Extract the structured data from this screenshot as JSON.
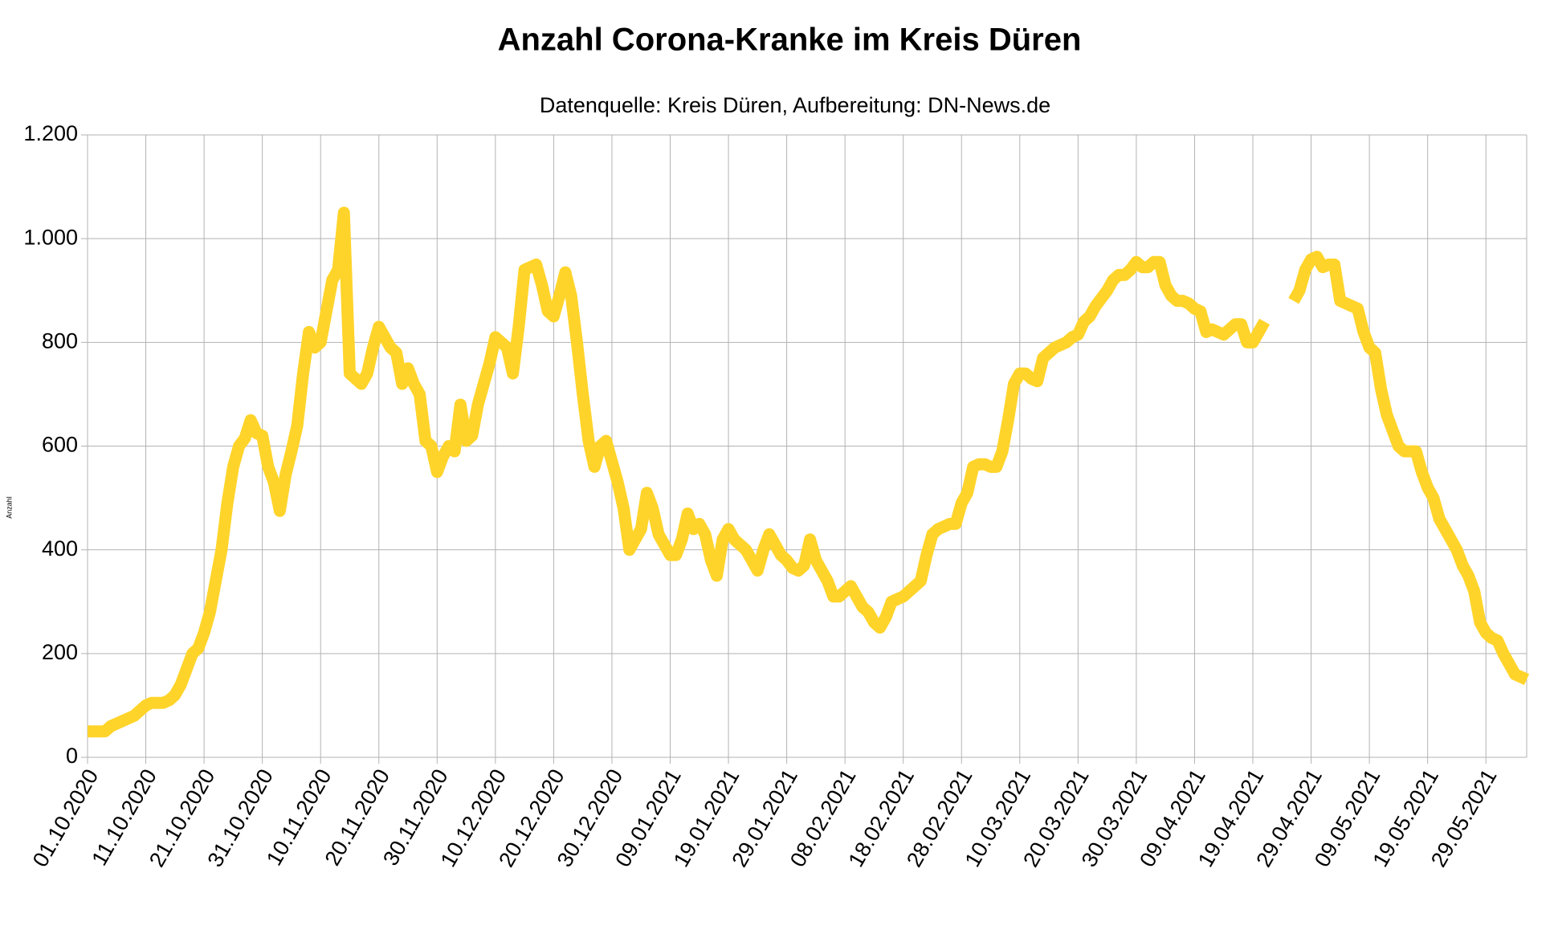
{
  "chart_data": {
    "type": "line",
    "title": "Anzahl Corona-Kranke im Kreis Düren",
    "subtitle": "Datenquelle: Kreis Düren, Aufbereitung: DN-News.de",
    "y_label": "Anzahl",
    "grid": true,
    "ylim": [
      0,
      1200
    ],
    "yticks": [
      0,
      200,
      400,
      600,
      800,
      {
        "value": 1000,
        "label": "1.000"
      },
      {
        "value": 1200,
        "label": "1.200"
      }
    ],
    "xticks": [
      "01.10.2020",
      "11.10.2020",
      "21.10.2020",
      "31.10.2020",
      "10.11.2020",
      "20.11.2020",
      "30.11.2020",
      "10.12.2020",
      "20.12.2020",
      "30.12.2020",
      "09.01.2021",
      "19.01.2021",
      "29.01.2021",
      "08.02.2021",
      "18.02.2021",
      "28.02.2021",
      "10.03.2021",
      "20.03.2021",
      "30.03.2021",
      "09.04.2021",
      "19.04.2021",
      "29.04.2021",
      "09.05.2021",
      "19.05.2021",
      "29.05.2021"
    ],
    "x": [
      "01.10.2020",
      "02.10.2020",
      "03.10.2020",
      "04.10.2020",
      "05.10.2020",
      "06.10.2020",
      "07.10.2020",
      "08.10.2020",
      "09.10.2020",
      "10.10.2020",
      "11.10.2020",
      "12.10.2020",
      "13.10.2020",
      "14.10.2020",
      "15.10.2020",
      "16.10.2020",
      "17.10.2020",
      "18.10.2020",
      "19.10.2020",
      "20.10.2020",
      "21.10.2020",
      "22.10.2020",
      "23.10.2020",
      "24.10.2020",
      "25.10.2020",
      "26.10.2020",
      "27.10.2020",
      "28.10.2020",
      "29.10.2020",
      "30.10.2020",
      "31.10.2020",
      "01.11.2020",
      "02.11.2020",
      "03.11.2020",
      "04.11.2020",
      "05.11.2020",
      "06.11.2020",
      "07.11.2020",
      "08.11.2020",
      "09.11.2020",
      "10.11.2020",
      "11.11.2020",
      "12.11.2020",
      "13.11.2020",
      "14.11.2020",
      "15.11.2020",
      "16.11.2020",
      "17.11.2020",
      "18.11.2020",
      "19.11.2020",
      "20.11.2020",
      "21.11.2020",
      "22.11.2020",
      "23.11.2020",
      "24.11.2020",
      "25.11.2020",
      "26.11.2020",
      "27.11.2020",
      "28.11.2020",
      "29.11.2020",
      "30.11.2020",
      "01.12.2020",
      "02.12.2020",
      "03.12.2020",
      "04.12.2020",
      "05.12.2020",
      "06.12.2020",
      "07.12.2020",
      "08.12.2020",
      "09.12.2020",
      "10.12.2020",
      "11.12.2020",
      "12.12.2020",
      "13.12.2020",
      "14.12.2020",
      "15.12.2020",
      "16.12.2020",
      "17.12.2020",
      "18.12.2020",
      "19.12.2020",
      "20.12.2020",
      "21.12.2020",
      "22.12.2020",
      "23.12.2020",
      "24.12.2020",
      "25.12.2020",
      "26.12.2020",
      "27.12.2020",
      "28.12.2020",
      "29.12.2020",
      "30.12.2020",
      "31.12.2020",
      "01.01.2021",
      "02.01.2021",
      "03.01.2021",
      "04.01.2021",
      "05.01.2021",
      "06.01.2021",
      "07.01.2021",
      "08.01.2021",
      "09.01.2021",
      "10.01.2021",
      "11.01.2021",
      "12.01.2021",
      "13.01.2021",
      "14.01.2021",
      "15.01.2021",
      "16.01.2021",
      "17.01.2021",
      "18.01.2021",
      "19.01.2021",
      "20.01.2021",
      "21.01.2021",
      "22.01.2021",
      "23.01.2021",
      "24.01.2021",
      "25.01.2021",
      "26.01.2021",
      "27.01.2021",
      "28.01.2021",
      "29.01.2021",
      "30.01.2021",
      "31.01.2021",
      "01.02.2021",
      "02.02.2021",
      "03.02.2021",
      "04.02.2021",
      "05.02.2021",
      "06.02.2021",
      "07.02.2021",
      "08.02.2021",
      "09.02.2021",
      "10.02.2021",
      "11.02.2021",
      "12.02.2021",
      "13.02.2021",
      "14.02.2021",
      "15.02.2021",
      "16.02.2021",
      "17.02.2021",
      "18.02.2021",
      "19.02.2021",
      "20.02.2021",
      "21.02.2021",
      "22.02.2021",
      "23.02.2021",
      "24.02.2021",
      "25.02.2021",
      "26.02.2021",
      "27.02.2021",
      "28.02.2021",
      "01.03.2021",
      "02.03.2021",
      "03.03.2021",
      "04.03.2021",
      "05.03.2021",
      "06.03.2021",
      "07.03.2021",
      "08.03.2021",
      "09.03.2021",
      "10.03.2021",
      "11.03.2021",
      "12.03.2021",
      "13.03.2021",
      "14.03.2021",
      "15.03.2021",
      "16.03.2021",
      "17.03.2021",
      "18.03.2021",
      "19.03.2021",
      "20.03.2021",
      "21.03.2021",
      "22.03.2021",
      "23.03.2021",
      "24.03.2021",
      "25.03.2021",
      "26.03.2021",
      "27.03.2021",
      "28.03.2021",
      "29.03.2021",
      "30.03.2021",
      "31.03.2021",
      "01.04.2021",
      "02.04.2021",
      "03.04.2021",
      "04.04.2021",
      "05.04.2021",
      "06.04.2021",
      "07.04.2021",
      "08.04.2021",
      "09.04.2021",
      "10.04.2021",
      "11.04.2021",
      "12.04.2021",
      "13.04.2021",
      "14.04.2021",
      "15.04.2021",
      "16.04.2021",
      "17.04.2021",
      "18.04.2021",
      "19.04.2021",
      "20.04.2021",
      "21.04.2021",
      "22.04.2021",
      "23.04.2021",
      "24.04.2021",
      "25.04.2021",
      "26.04.2021",
      "27.04.2021",
      "28.04.2021",
      "29.04.2021",
      "30.04.2021",
      "01.05.2021",
      "02.05.2021",
      "03.05.2021",
      "04.05.2021",
      "05.05.2021",
      "06.05.2021",
      "07.05.2021",
      "08.05.2021",
      "09.05.2021",
      "10.05.2021",
      "11.05.2021",
      "12.05.2021",
      "13.05.2021",
      "14.05.2021",
      "15.05.2021",
      "16.05.2021",
      "17.05.2021",
      "18.05.2021",
      "19.05.2021",
      "20.05.2021",
      "21.05.2021",
      "22.05.2021",
      "23.05.2021",
      "24.05.2021",
      "25.05.2021",
      "26.05.2021",
      "27.05.2021",
      "28.05.2021",
      "29.05.2021",
      "30.05.2021",
      "31.05.2021",
      "01.06.2021",
      "02.06.2021",
      "03.06.2021",
      "04.06.2021",
      "05.06.2021"
    ],
    "series": [
      {
        "name": "Anzahl",
        "color": "#ffd42a",
        "values": [
          50,
          50,
          50,
          50,
          60,
          65,
          70,
          75,
          80,
          90,
          100,
          105,
          105,
          105,
          110,
          120,
          140,
          170,
          200,
          210,
          240,
          280,
          340,
          400,
          490,
          560,
          600,
          615,
          650,
          625,
          620,
          560,
          530,
          475,
          545,
          590,
          640,
          740,
          820,
          790,
          800,
          860,
          920,
          940,
          1050,
          740,
          730,
          720,
          740,
          790,
          830,
          810,
          790,
          780,
          720,
          750,
          720,
          700,
          610,
          600,
          550,
          580,
          600,
          590,
          680,
          610,
          620,
          680,
          720,
          760,
          810,
          800,
          790,
          740,
          830,
          940,
          945,
          950,
          910,
          860,
          850,
          890,
          935,
          890,
          800,
          700,
          610,
          560,
          600,
          610,
          570,
          530,
          480,
          400,
          420,
          440,
          510,
          480,
          430,
          410,
          390,
          390,
          420,
          470,
          440,
          450,
          430,
          380,
          350,
          420,
          440,
          420,
          410,
          400,
          380,
          360,
          400,
          430,
          410,
          390,
          380,
          365,
          360,
          370,
          420,
          380,
          360,
          340,
          310,
          310,
          320,
          330,
          310,
          290,
          280,
          260,
          250,
          270,
          300,
          305,
          310,
          320,
          330,
          340,
          390,
          430,
          440,
          445,
          450,
          450,
          490,
          510,
          560,
          565,
          565,
          560,
          560,
          590,
          650,
          720,
          740,
          740,
          730,
          725,
          770,
          780,
          790,
          795,
          800,
          810,
          815,
          840,
          850,
          870,
          885,
          900,
          920,
          930,
          930,
          940,
          955,
          945,
          945,
          955,
          955,
          910,
          890,
          880,
          880,
          875,
          865,
          860,
          820,
          825,
          820,
          815,
          825,
          835,
          835,
          800,
          800,
          820,
          840,
          null,
          null,
          null,
          null,
          880,
          900,
          940,
          960,
          965,
          945,
          950,
          950,
          880,
          875,
          870,
          865,
          820,
          790,
          780,
          710,
          660,
          630,
          600,
          590,
          590,
          590,
          550,
          520,
          500,
          460,
          440,
          420,
          400,
          370,
          350,
          320,
          260,
          240,
          230,
          225,
          200,
          180,
          160,
          155,
          150
        ]
      }
    ]
  }
}
